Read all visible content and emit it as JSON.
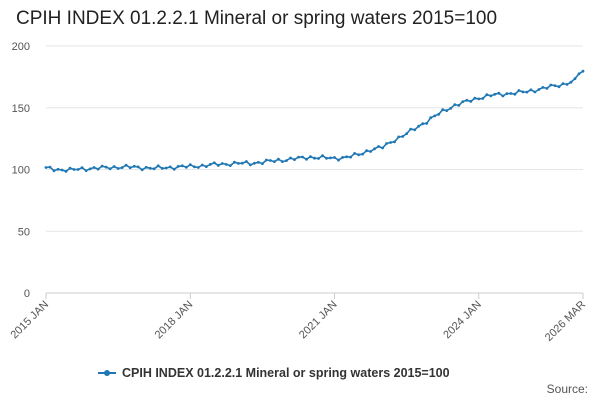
{
  "chart_data": {
    "type": "line",
    "title": "CPIH INDEX 01.2.2.1 Mineral or spring waters 2015=100",
    "xlabel": "",
    "ylabel": "",
    "ylim": [
      0,
      200
    ],
    "yticks": [
      0,
      50,
      100,
      150,
      200
    ],
    "x_range": [
      "2015 JAN",
      "2026 MAR"
    ],
    "xticks": [
      {
        "label": "2015 JAN",
        "month_index": 0
      },
      {
        "label": "2018 JAN",
        "month_index": 36
      },
      {
        "label": "2021 JAN",
        "month_index": 72
      },
      {
        "label": "2024 JAN",
        "month_index": 108
      },
      {
        "label": "2026 MAR",
        "month_index": 134
      }
    ],
    "grid": true,
    "legend_position": "bottom",
    "color": "#1f77b4",
    "anchors": [
      [
        0,
        101
      ],
      [
        3,
        100
      ],
      [
        6,
        99.5
      ],
      [
        9,
        100.5
      ],
      [
        12,
        101
      ],
      [
        15,
        101.5
      ],
      [
        18,
        102
      ],
      [
        21,
        102
      ],
      [
        24,
        101.5
      ],
      [
        27,
        101
      ],
      [
        30,
        101.5
      ],
      [
        33,
        102
      ],
      [
        36,
        102.5
      ],
      [
        39,
        103
      ],
      [
        42,
        104
      ],
      [
        45,
        104.5
      ],
      [
        48,
        105
      ],
      [
        51,
        105
      ],
      [
        54,
        106
      ],
      [
        57,
        107
      ],
      [
        60,
        108
      ],
      [
        63,
        109
      ],
      [
        66,
        110
      ],
      [
        69,
        109.5
      ],
      [
        72,
        109
      ],
      [
        75,
        110
      ],
      [
        78,
        112
      ],
      [
        81,
        116
      ],
      [
        84,
        118
      ],
      [
        87,
        124
      ],
      [
        90,
        129
      ],
      [
        93,
        135
      ],
      [
        96,
        141
      ],
      [
        99,
        147
      ],
      [
        102,
        152
      ],
      [
        105,
        155
      ],
      [
        108,
        158
      ],
      [
        111,
        160
      ],
      [
        114,
        161
      ],
      [
        117,
        162
      ],
      [
        120,
        163
      ],
      [
        123,
        165
      ],
      [
        126,
        167
      ],
      [
        129,
        169
      ],
      [
        132,
        172
      ],
      [
        133,
        178
      ],
      [
        134,
        179
      ]
    ],
    "series": [
      {
        "name": "CPIH INDEX 01.2.2.1 Mineral or spring waters 2015=100"
      }
    ]
  },
  "source_label": "Source:"
}
